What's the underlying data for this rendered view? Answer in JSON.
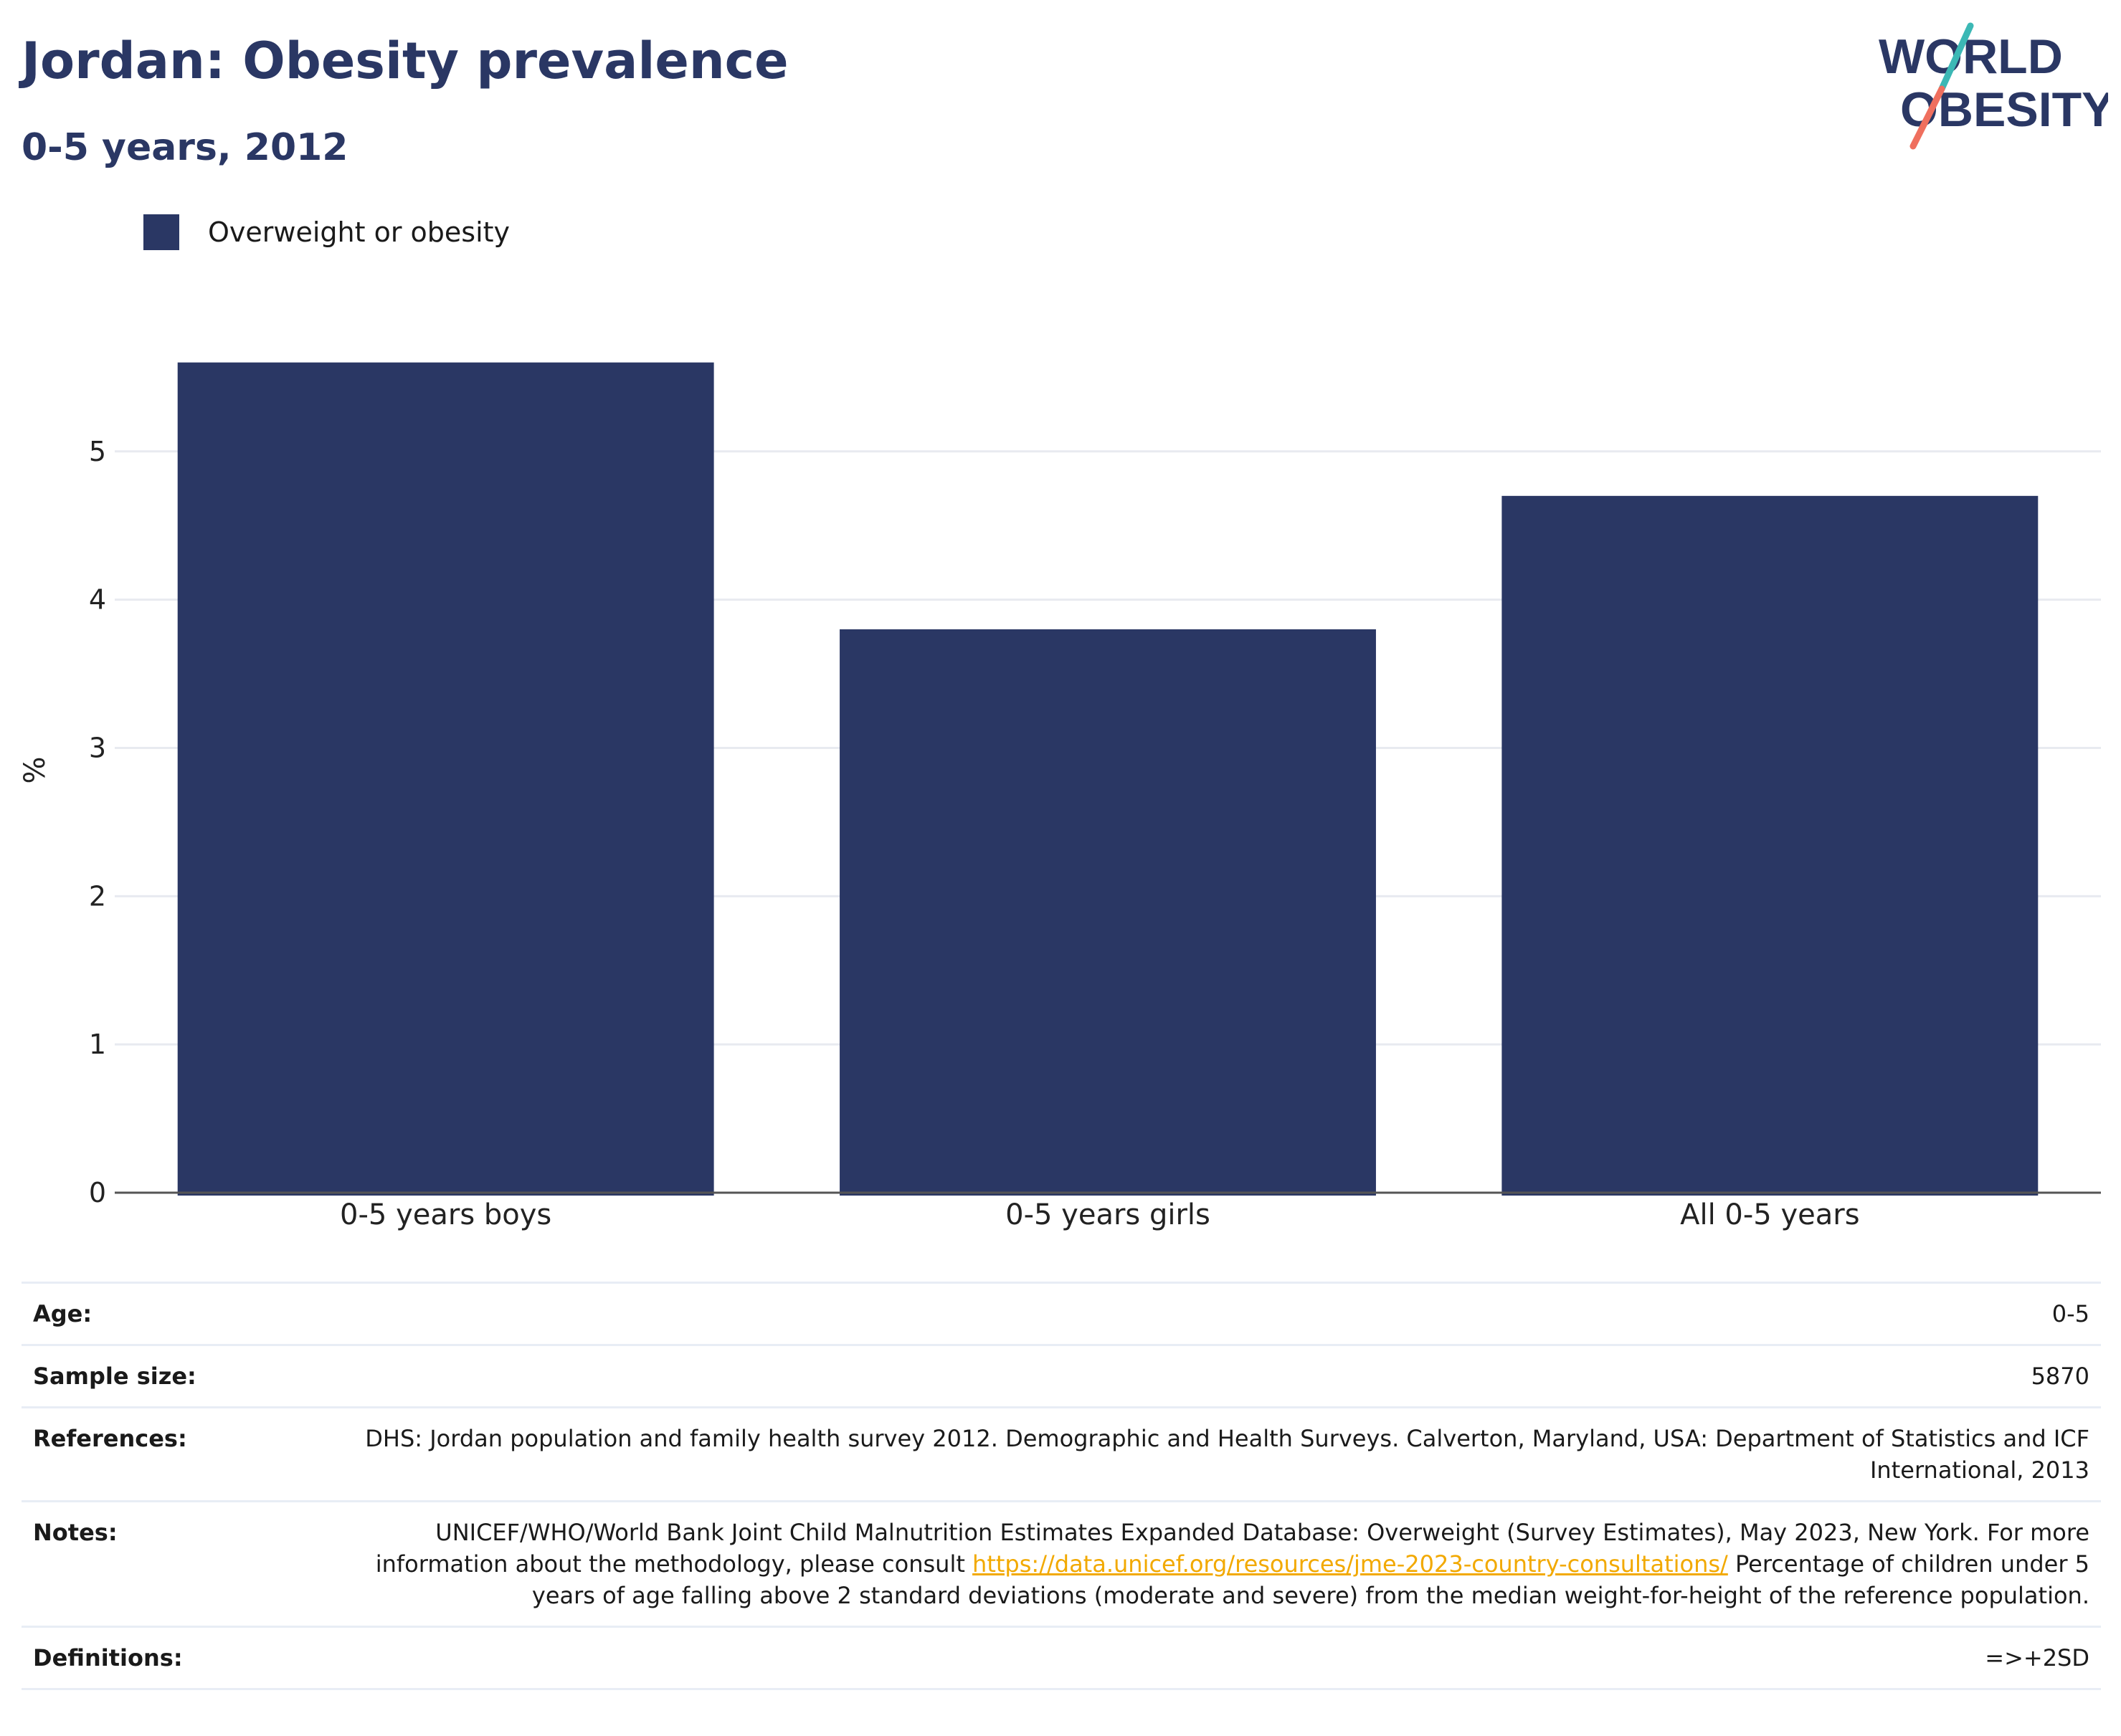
{
  "title": "Jordan: Obesity prevalence",
  "subtitle": "0-5 years, 2012",
  "logo": {
    "line1": "WORLD",
    "line2": "OBESITY"
  },
  "legend": {
    "label": "Overweight or obesity"
  },
  "colors": {
    "bar": "#2a3764",
    "title": "#2a3764",
    "grid": "#e8eaf0",
    "axis": "#555555",
    "link": "#f2a900",
    "logo_teal": "#3cb8b5",
    "logo_coral": "#ef6f5e"
  },
  "chart_data": {
    "type": "bar",
    "title": "Jordan: Obesity prevalence",
    "subtitle": "0-5 years, 2012",
    "categories": [
      "0-5 years boys",
      "0-5 years girls",
      "All 0-5 years"
    ],
    "series": [
      {
        "name": "Overweight or obesity",
        "values": [
          5.6,
          3.8,
          4.7
        ]
      }
    ],
    "ylabel": "%",
    "xlabel": "",
    "ylim": [
      0,
      5.7
    ],
    "yticks": [
      0,
      1,
      2,
      3,
      4,
      5
    ],
    "grid": true,
    "legend": "top-left"
  },
  "info": {
    "age": {
      "label": "Age:",
      "value": "0-5"
    },
    "sample_size": {
      "label": "Sample size:",
      "value": "5870"
    },
    "references": {
      "label": "References:",
      "value": "DHS: Jordan population and family health survey 2012. Demographic and Health Surveys. Calverton, Maryland, USA: Department of Statistics and ICF International, 2013"
    },
    "notes": {
      "label": "Notes:",
      "text_before": "UNICEF/WHO/World Bank Joint Child Malnutrition Estimates Expanded Database: Overweight (Survey Estimates), May 2023, New York. For more information about the methodology, please consult",
      "link": "https://data.unicef.org/resources/jme-2023-country-consultations/",
      "text_after": "Percentage of children under 5 years of age falling above 2 standard deviations (moderate and severe) from the median weight-for-height of the reference population."
    },
    "definitions": {
      "label": "Definitions:",
      "value": "=>+2SD"
    }
  }
}
